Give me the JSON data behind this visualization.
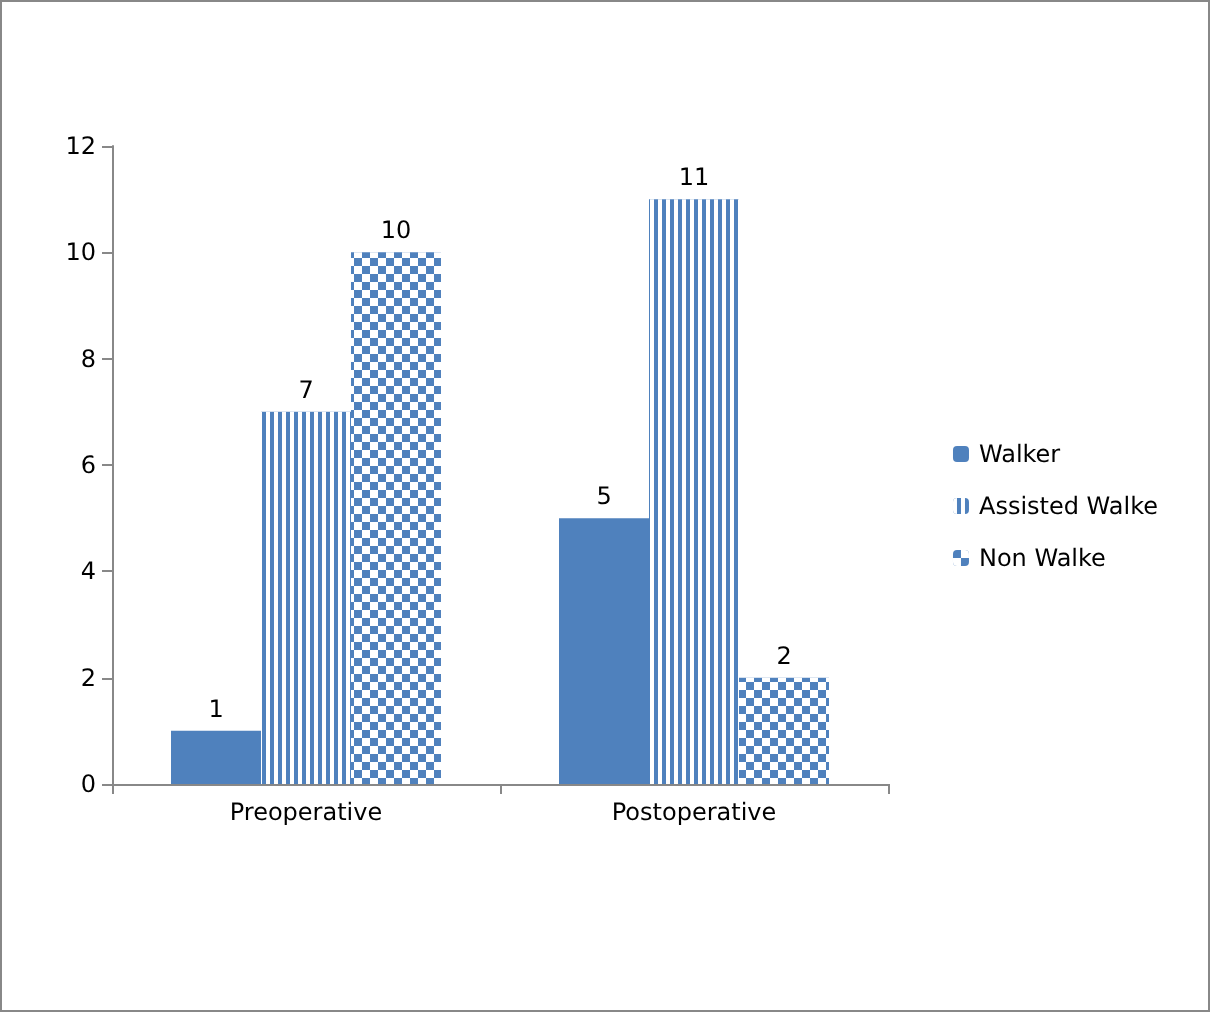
{
  "chart_data": {
    "type": "bar",
    "categories": [
      "Preoperative",
      "Postoperative"
    ],
    "series": [
      {
        "name": "Walker",
        "color": "#4f81bd",
        "values": [
          1,
          5
        ]
      },
      {
        "name": "Assisted Walke",
        "color": "#4f81bd",
        "values": [
          7,
          11
        ]
      },
      {
        "name": "Non Walke",
        "color": "#4f81bd",
        "values": [
          10,
          2
        ]
      }
    ],
    "ylim": [
      0,
      12
    ],
    "yticks": [
      0,
      2,
      4,
      6,
      8,
      10,
      12
    ],
    "grid": false,
    "legend": "right",
    "data_labels": true
  }
}
